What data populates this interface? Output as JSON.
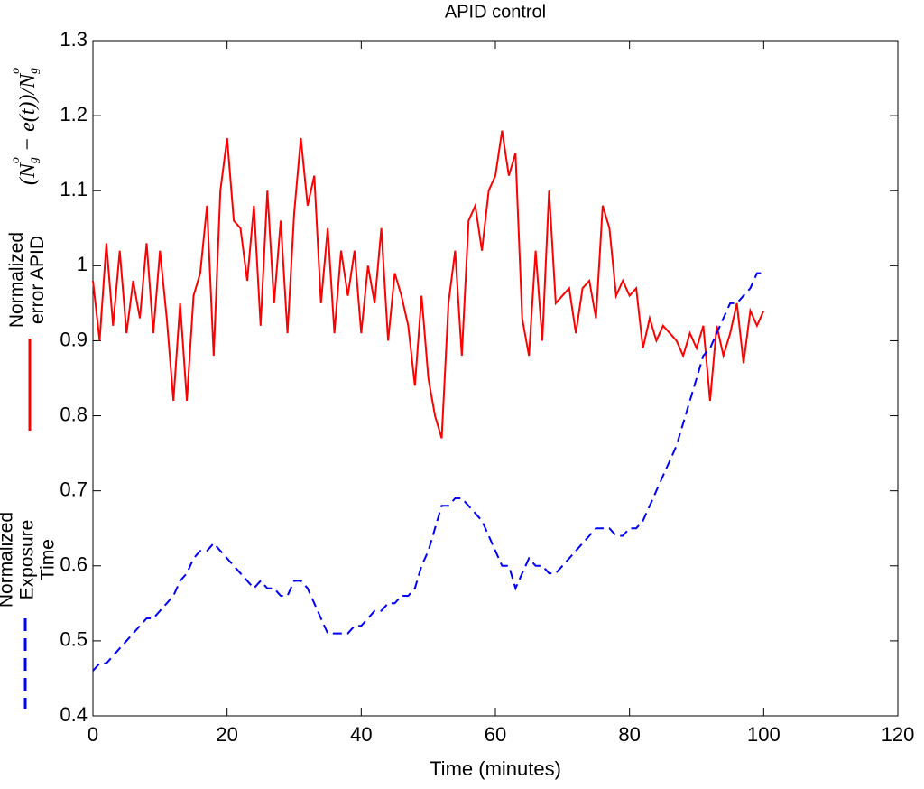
{
  "chart_data": {
    "type": "line",
    "title": "APID control",
    "xlabel": "Time (minutes)",
    "formula": [
      "(N",
      "g",
      "o",
      " − e(t))/N",
      "g",
      "o"
    ],
    "x": [
      0,
      1,
      2,
      3,
      4,
      5,
      6,
      7,
      8,
      9,
      10,
      11,
      12,
      13,
      14,
      15,
      16,
      17,
      18,
      19,
      20,
      21,
      22,
      23,
      24,
      25,
      26,
      27,
      28,
      29,
      30,
      31,
      32,
      33,
      34,
      35,
      36,
      37,
      38,
      39,
      40,
      41,
      42,
      43,
      44,
      45,
      46,
      47,
      48,
      49,
      50,
      51,
      52,
      53,
      54,
      55,
      56,
      57,
      58,
      59,
      60,
      61,
      62,
      63,
      64,
      65,
      66,
      67,
      68,
      69,
      70,
      71,
      72,
      73,
      74,
      75,
      76,
      77,
      78,
      79,
      80,
      81,
      82,
      83,
      84,
      85,
      86,
      87,
      88,
      89,
      90,
      91,
      92,
      93,
      94,
      95,
      96,
      97,
      98,
      99,
      100
    ],
    "series": [
      {
        "name": "Normalized error APID",
        "color": "#ff0000",
        "dash": false,
        "values": [
          0.98,
          0.9,
          1.03,
          0.92,
          1.02,
          0.91,
          0.98,
          0.93,
          1.03,
          0.91,
          1.02,
          0.93,
          0.82,
          0.95,
          0.82,
          0.96,
          0.99,
          1.08,
          0.88,
          1.1,
          1.17,
          1.06,
          1.05,
          0.98,
          1.08,
          0.92,
          1.1,
          0.95,
          1.06,
          0.91,
          1.07,
          1.17,
          1.08,
          1.12,
          0.95,
          1.05,
          0.91,
          1.02,
          0.96,
          1.02,
          0.91,
          1.0,
          0.95,
          1.05,
          0.9,
          0.99,
          0.96,
          0.92,
          0.84,
          0.96,
          0.85,
          0.8,
          0.77,
          0.95,
          1.02,
          0.88,
          1.06,
          1.08,
          1.02,
          1.1,
          1.12,
          1.18,
          1.12,
          1.15,
          0.93,
          0.88,
          1.02,
          0.9,
          1.1,
          0.95,
          0.96,
          0.97,
          0.91,
          0.97,
          0.98,
          0.93,
          1.08,
          1.05,
          0.96,
          0.98,
          0.96,
          0.97,
          0.89,
          0.93,
          0.9,
          0.92,
          0.91,
          0.9,
          0.88,
          0.91,
          0.89,
          0.92,
          0.82,
          0.92,
          0.88,
          0.91,
          0.95,
          0.87,
          0.94,
          0.92,
          0.94
        ]
      },
      {
        "name": "Normalized Exposure Time",
        "color": "#0000ff",
        "dash": true,
        "values": [
          0.46,
          0.47,
          0.47,
          0.48,
          0.49,
          0.5,
          0.51,
          0.52,
          0.53,
          0.53,
          0.54,
          0.55,
          0.56,
          0.58,
          0.59,
          0.61,
          0.62,
          0.62,
          0.63,
          0.62,
          0.61,
          0.6,
          0.59,
          0.58,
          0.57,
          0.58,
          0.57,
          0.57,
          0.56,
          0.56,
          0.58,
          0.58,
          0.57,
          0.55,
          0.53,
          0.51,
          0.51,
          0.51,
          0.51,
          0.52,
          0.52,
          0.53,
          0.54,
          0.54,
          0.55,
          0.55,
          0.56,
          0.56,
          0.57,
          0.6,
          0.62,
          0.65,
          0.68,
          0.68,
          0.69,
          0.69,
          0.68,
          0.67,
          0.66,
          0.64,
          0.62,
          0.6,
          0.6,
          0.57,
          0.59,
          0.61,
          0.6,
          0.6,
          0.59,
          0.59,
          0.6,
          0.61,
          0.62,
          0.63,
          0.64,
          0.65,
          0.65,
          0.65,
          0.64,
          0.64,
          0.65,
          0.65,
          0.66,
          0.68,
          0.7,
          0.72,
          0.74,
          0.76,
          0.79,
          0.82,
          0.85,
          0.88,
          0.89,
          0.91,
          0.93,
          0.95,
          0.95,
          0.96,
          0.97,
          0.99,
          0.99
        ]
      }
    ],
    "xlim": [
      0,
      120
    ],
    "xticks": [
      0,
      20,
      40,
      60,
      80,
      100,
      120
    ],
    "ylim": [
      0.4,
      1.3
    ],
    "yticks": [
      0.4,
      0.5,
      0.6,
      0.7,
      0.8,
      0.9,
      1,
      1.1,
      1.2,
      1.3
    ],
    "grid": false
  }
}
